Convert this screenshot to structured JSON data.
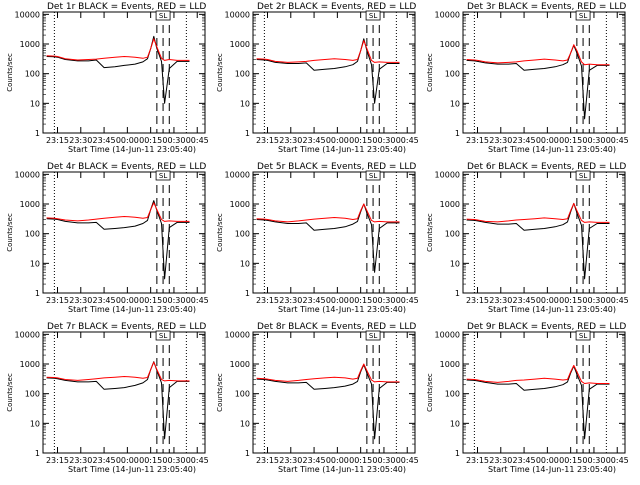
{
  "figure": {
    "xtick_labels": [
      "23:15",
      "23:30",
      "23:45",
      "00:00",
      "00:15",
      "00:30",
      "00:45"
    ],
    "ytick_labels": [
      "1",
      "10",
      "100",
      "1000",
      "10000"
    ],
    "flag_label": "SL"
  },
  "chart_data": [
    {
      "type": "line",
      "panel": "det-1r",
      "title": "Det 1r BLACK = Events, RED = LLD",
      "xlabel": "Start Time (14-Jun-11 23:05:40)",
      "ylabel": "Counts/sec",
      "y_scale": "log",
      "ylim": [
        1,
        12000
      ],
      "xlim": [
        "23:05:40",
        "00:50:00"
      ],
      "x": [
        "23:08",
        "23:13",
        "23:15",
        "23:20",
        "23:28",
        "23:35",
        "23:40",
        "23:45",
        "23:52",
        "23:58",
        "00:05",
        "00:10",
        "00:13",
        "00:15",
        "00:17",
        "00:19",
        "00:22",
        "00:24",
        "00:27",
        "00:32",
        "00:40"
      ],
      "series": [
        {
          "name": "BLACK",
          "color": "#000000",
          "values": [
            380,
            370,
            360,
            300,
            270,
            270,
            290,
            160,
            170,
            190,
            210,
            250,
            320,
            700,
            1800,
            700,
            260,
            10,
            150,
            260,
            260
          ]
        },
        {
          "name": "RED",
          "color": "#ff0000",
          "values": [
            400,
            390,
            380,
            320,
            290,
            300,
            310,
            330,
            360,
            380,
            360,
            330,
            360,
            700,
            1500,
            800,
            330,
            280,
            300,
            280,
            280
          ]
        }
      ],
      "annotations": {
        "dotted_lines_x": [
          "23:13",
          "00:38"
        ],
        "dashed_lines_x": [
          "00:19",
          "00:23",
          "00:27"
        ]
      }
    },
    {
      "type": "line",
      "panel": "det-2r",
      "title": "Det 2r BLACK = Events, RED = LLD",
      "xlabel": "Start Time (14-Jun-11 23:05:40)",
      "ylabel": "Counts/sec",
      "y_scale": "log",
      "ylim": [
        1,
        12000
      ],
      "xlim": [
        "23:05:40",
        "00:50:00"
      ],
      "x": [
        "23:08",
        "23:13",
        "23:15",
        "23:20",
        "23:28",
        "23:35",
        "23:40",
        "23:45",
        "23:52",
        "23:58",
        "00:05",
        "00:10",
        "00:13",
        "00:15",
        "00:17",
        "00:19",
        "00:22",
        "00:24",
        "00:27",
        "00:32",
        "00:40"
      ],
      "series": [
        {
          "name": "BLACK",
          "color": "#000000",
          "values": [
            300,
            290,
            280,
            240,
            220,
            220,
            230,
            130,
            140,
            150,
            170,
            200,
            260,
            600,
            1500,
            600,
            200,
            10,
            140,
            220,
            220
          ]
        },
        {
          "name": "RED",
          "color": "#ff0000",
          "values": [
            320,
            310,
            300,
            260,
            240,
            250,
            260,
            280,
            300,
            320,
            300,
            280,
            300,
            600,
            1300,
            700,
            280,
            240,
            250,
            240,
            240
          ]
        }
      ],
      "annotations": {
        "dotted_lines_x": [
          "23:13",
          "00:38"
        ],
        "dashed_lines_x": [
          "00:19",
          "00:23",
          "00:27"
        ]
      }
    },
    {
      "type": "line",
      "panel": "det-3r",
      "title": "Det 3r BLACK = Events, RED = LLD",
      "xlabel": "Start Time (14-Jun-11 23:05:40)",
      "ylabel": "Counts/sec",
      "y_scale": "log",
      "ylim": [
        1,
        12000
      ],
      "xlim": [
        "23:05:40",
        "00:50:00"
      ],
      "x": [
        "23:08",
        "23:13",
        "23:15",
        "23:20",
        "23:28",
        "23:35",
        "23:40",
        "23:45",
        "23:52",
        "23:58",
        "00:05",
        "00:10",
        "00:13",
        "00:15",
        "00:17",
        "00:19",
        "00:22",
        "00:24",
        "00:27",
        "00:32",
        "00:40"
      ],
      "series": [
        {
          "name": "BLACK",
          "color": "#000000",
          "values": [
            280,
            270,
            260,
            230,
            210,
            210,
            220,
            130,
            140,
            150,
            170,
            200,
            240,
            500,
            900,
            500,
            180,
            3,
            130,
            190,
            190
          ]
        },
        {
          "name": "RED",
          "color": "#ff0000",
          "values": [
            300,
            290,
            280,
            250,
            230,
            240,
            250,
            270,
            290,
            310,
            290,
            270,
            290,
            500,
            950,
            600,
            250,
            200,
            210,
            200,
            200
          ]
        }
      ],
      "annotations": {
        "dotted_lines_x": [
          "23:13",
          "00:38"
        ],
        "dashed_lines_x": [
          "00:19",
          "00:23",
          "00:27"
        ]
      }
    },
    {
      "type": "line",
      "panel": "det-4r",
      "title": "Det 4r BLACK = Events, RED = LLD",
      "xlabel": "Start Time (14-Jun-11 23:05:40)",
      "ylabel": "Counts/sec",
      "y_scale": "log",
      "ylim": [
        1,
        12000
      ],
      "xlim": [
        "23:05:40",
        "00:50:00"
      ],
      "x": [
        "23:08",
        "23:13",
        "23:15",
        "23:20",
        "23:28",
        "23:35",
        "23:40",
        "23:45",
        "23:52",
        "23:58",
        "00:05",
        "00:10",
        "00:13",
        "00:15",
        "00:17",
        "00:19",
        "00:22",
        "00:24",
        "00:27",
        "00:32",
        "00:40"
      ],
      "series": [
        {
          "name": "BLACK",
          "color": "#000000",
          "values": [
            320,
            310,
            300,
            260,
            230,
            230,
            240,
            140,
            150,
            160,
            180,
            220,
            280,
            650,
            1300,
            600,
            220,
            3,
            160,
            240,
            240
          ]
        },
        {
          "name": "RED",
          "color": "#ff0000",
          "values": [
            340,
            330,
            320,
            290,
            270,
            290,
            310,
            330,
            360,
            380,
            360,
            330,
            350,
            650,
            1100,
            650,
            300,
            260,
            270,
            260,
            260
          ]
        }
      ],
      "annotations": {
        "dotted_lines_x": [
          "23:13",
          "00:38"
        ],
        "dashed_lines_x": [
          "00:19",
          "00:23",
          "00:27"
        ]
      }
    },
    {
      "type": "line",
      "panel": "det-5r",
      "title": "Det 5r BLACK = Events, RED = LLD",
      "xlabel": "Start Time (14-Jun-11 23:05:40)",
      "ylabel": "Counts/sec",
      "y_scale": "log",
      "ylim": [
        1,
        12000
      ],
      "xlim": [
        "23:05:40",
        "00:50:00"
      ],
      "x": [
        "23:08",
        "23:13",
        "23:15",
        "23:20",
        "23:28",
        "23:35",
        "23:40",
        "23:45",
        "23:52",
        "23:58",
        "00:05",
        "00:10",
        "00:13",
        "00:15",
        "00:17",
        "00:19",
        "00:22",
        "00:24",
        "00:27",
        "00:32",
        "00:40"
      ],
      "series": [
        {
          "name": "BLACK",
          "color": "#000000",
          "values": [
            300,
            290,
            280,
            250,
            220,
            220,
            230,
            130,
            140,
            150,
            170,
            210,
            260,
            550,
            1000,
            500,
            200,
            5,
            150,
            230,
            230
          ]
        },
        {
          "name": "RED",
          "color": "#ff0000",
          "values": [
            320,
            310,
            300,
            270,
            250,
            270,
            290,
            310,
            330,
            350,
            330,
            300,
            320,
            600,
            1000,
            600,
            280,
            250,
            260,
            250,
            250
          ]
        }
      ],
      "annotations": {
        "dotted_lines_x": [
          "23:13",
          "00:38"
        ],
        "dashed_lines_x": [
          "00:19",
          "00:23",
          "00:27"
        ]
      }
    },
    {
      "type": "line",
      "panel": "det-6r",
      "title": "Det 6r BLACK = Events, RED = LLD",
      "xlabel": "Start Time (14-Jun-11 23:05:40)",
      "ylabel": "Counts/sec",
      "y_scale": "log",
      "ylim": [
        1,
        12000
      ],
      "xlim": [
        "23:05:40",
        "00:50:00"
      ],
      "x": [
        "23:08",
        "23:13",
        "23:15",
        "23:20",
        "23:28",
        "23:35",
        "23:40",
        "23:45",
        "23:52",
        "23:58",
        "00:05",
        "00:10",
        "00:13",
        "00:15",
        "00:17",
        "00:19",
        "00:22",
        "00:24",
        "00:27",
        "00:32",
        "00:40"
      ],
      "series": [
        {
          "name": "BLACK",
          "color": "#000000",
          "values": [
            290,
            280,
            270,
            240,
            210,
            210,
            220,
            130,
            140,
            150,
            170,
            200,
            250,
            550,
            1050,
            500,
            190,
            3,
            150,
            220,
            220
          ]
        },
        {
          "name": "RED",
          "color": "#ff0000",
          "values": [
            310,
            300,
            290,
            260,
            250,
            270,
            290,
            300,
            320,
            340,
            320,
            300,
            320,
            600,
            1050,
            600,
            280,
            240,
            250,
            240,
            240
          ]
        }
      ],
      "annotations": {
        "dotted_lines_x": [
          "23:13",
          "00:38"
        ],
        "dashed_lines_x": [
          "00:19",
          "00:23",
          "00:27"
        ]
      }
    },
    {
      "type": "line",
      "panel": "det-7r",
      "title": "Det 7r BLACK = Events, RED = LLD",
      "xlabel": "Start Time (14-Jun-11 23:05:40)",
      "ylabel": "Counts/sec",
      "y_scale": "log",
      "ylim": [
        1,
        12000
      ],
      "xlim": [
        "23:05:40",
        "00:50:00"
      ],
      "x": [
        "23:08",
        "23:13",
        "23:15",
        "23:20",
        "23:28",
        "23:35",
        "23:40",
        "23:45",
        "23:52",
        "23:58",
        "00:05",
        "00:10",
        "00:13",
        "00:15",
        "00:17",
        "00:19",
        "00:22",
        "00:24",
        "00:27",
        "00:32",
        "00:40"
      ],
      "series": [
        {
          "name": "BLACK",
          "color": "#000000",
          "values": [
            340,
            330,
            320,
            280,
            250,
            250,
            260,
            140,
            150,
            160,
            190,
            230,
            300,
            650,
            1200,
            600,
            230,
            3,
            160,
            260,
            260
          ]
        },
        {
          "name": "RED",
          "color": "#ff0000",
          "values": [
            360,
            350,
            340,
            300,
            280,
            300,
            320,
            340,
            360,
            380,
            360,
            330,
            350,
            650,
            1150,
            650,
            300,
            270,
            280,
            270,
            270
          ]
        }
      ],
      "annotations": {
        "dotted_lines_x": [
          "23:13",
          "00:38"
        ],
        "dashed_lines_x": [
          "00:19",
          "00:23",
          "00:27"
        ]
      }
    },
    {
      "type": "line",
      "panel": "det-8r",
      "title": "Det 8r BLACK = Events, RED = LLD",
      "xlabel": "Start Time (14-Jun-11 23:05:40)",
      "ylabel": "Counts/sec",
      "y_scale": "log",
      "ylim": [
        1,
        12000
      ],
      "xlim": [
        "23:05:40",
        "00:50:00"
      ],
      "x": [
        "23:08",
        "23:13",
        "23:15",
        "23:20",
        "23:28",
        "23:35",
        "23:40",
        "23:45",
        "23:52",
        "23:58",
        "00:05",
        "00:10",
        "00:13",
        "00:15",
        "00:17",
        "00:19",
        "00:22",
        "00:24",
        "00:27",
        "00:32",
        "00:40"
      ],
      "series": [
        {
          "name": "BLACK",
          "color": "#000000",
          "values": [
            310,
            300,
            290,
            260,
            230,
            230,
            240,
            140,
            150,
            160,
            180,
            210,
            260,
            550,
            950,
            500,
            210,
            3,
            150,
            240,
            240
          ]
        },
        {
          "name": "RED",
          "color": "#ff0000",
          "values": [
            330,
            320,
            310,
            280,
            260,
            280,
            300,
            320,
            340,
            360,
            340,
            310,
            330,
            600,
            1000,
            600,
            290,
            250,
            260,
            250,
            250
          ]
        }
      ],
      "annotations": {
        "dotted_lines_x": [
          "23:13",
          "00:38"
        ],
        "dashed_lines_x": [
          "00:19",
          "00:23",
          "00:27"
        ]
      }
    },
    {
      "type": "line",
      "panel": "det-9r",
      "title": "Det 9r BLACK = Events, RED = LLD",
      "xlabel": "Start Time (14-Jun-11 23:05:40)",
      "ylabel": "Counts/sec",
      "y_scale": "log",
      "ylim": [
        1,
        12000
      ],
      "xlim": [
        "23:05:40",
        "00:50:00"
      ],
      "x": [
        "23:08",
        "23:13",
        "23:15",
        "23:20",
        "23:28",
        "23:35",
        "23:40",
        "23:45",
        "23:52",
        "23:58",
        "00:05",
        "00:10",
        "00:13",
        "00:15",
        "00:17",
        "00:19",
        "00:22",
        "00:24",
        "00:27",
        "00:32",
        "00:40"
      ],
      "series": [
        {
          "name": "BLACK",
          "color": "#000000",
          "values": [
            290,
            280,
            270,
            240,
            210,
            210,
            220,
            130,
            140,
            150,
            170,
            200,
            250,
            500,
            850,
            450,
            190,
            3,
            140,
            210,
            210
          ]
        },
        {
          "name": "RED",
          "color": "#ff0000",
          "values": [
            310,
            300,
            290,
            260,
            240,
            260,
            280,
            290,
            310,
            330,
            310,
            290,
            300,
            550,
            900,
            550,
            260,
            220,
            230,
            220,
            220
          ]
        }
      ],
      "annotations": {
        "dotted_lines_x": [
          "23:13",
          "00:38"
        ],
        "dashed_lines_x": [
          "00:19",
          "00:23",
          "00:27"
        ]
      }
    }
  ]
}
